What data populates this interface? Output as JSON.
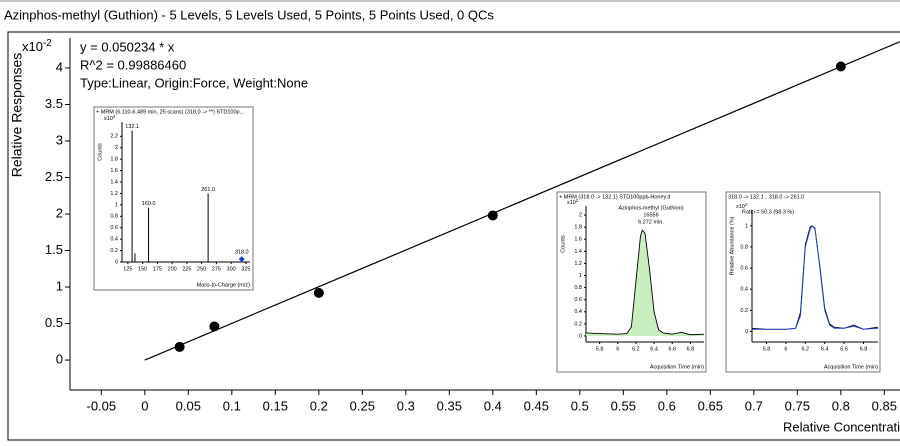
{
  "chart_data": [
    {
      "type": "scatter",
      "title": "Azinphos-methyl (Guthion) - 5 Levels, 5 Levels Used, 5 Points, 5 Points Used, 0 QCs",
      "annotations": [
        "y = 0.050234 * x",
        "R^2 = 0.99886460",
        "Type:Linear, Origin:Force, Weight:None"
      ],
      "y_scale_label": "x10",
      "y_scale_exponent": "-2",
      "y_label": "Relative Responses",
      "x_label": "Relative Concentration",
      "x": [
        0.04,
        0.08,
        0.2,
        0.4,
        0.8
      ],
      "values": [
        0.18,
        0.46,
        0.92,
        1.98,
        4.02
      ],
      "color": "#000000",
      "fit": {
        "x": [
          0,
          0.868
        ],
        "values": [
          0,
          4.36
        ],
        "color": "#000000"
      },
      "xlim": [
        -0.086,
        0.868
      ],
      "ylim": [
        -0.41,
        4.41
      ],
      "xticks": [
        -0.05,
        0,
        0.05,
        0.1,
        0.15,
        0.2,
        0.25,
        0.3,
        0.35,
        0.4,
        0.45,
        0.5,
        0.55,
        0.6,
        0.65,
        0.7,
        0.75,
        0.8,
        0.85
      ],
      "yticks": [
        0,
        0.5,
        1,
        1.5,
        2,
        2.5,
        3,
        3.5,
        4
      ]
    },
    {
      "type": "bar",
      "title": "+ MRM (6.110-6.489 min, 25 scans) (318.0 -> **) STD100p...",
      "y_label": "Counts",
      "y_scale_label": "x10",
      "y_scale_exponent": "4",
      "x_label": "Mass-to-Charge (m/z)",
      "x": [
        132.1,
        137,
        160.0,
        261.0,
        318.0
      ],
      "values": [
        2.3,
        0.15,
        0.95,
        1.2,
        0.05
      ],
      "peak_labels": [
        "132.1",
        null,
        "160.0",
        "261.0",
        "318.0"
      ],
      "color": "#000000",
      "marker_color": "#1f3fd6",
      "xlim": [
        115,
        332
      ],
      "ylim": [
        0,
        2.45
      ],
      "xticks": [
        125,
        150,
        175,
        200,
        225,
        250,
        275,
        300,
        325
      ],
      "yticks": [
        0,
        0.2,
        0.4,
        0.6,
        0.8,
        1,
        1.2,
        1.4,
        1.6,
        1.8,
        2,
        2.2
      ]
    },
    {
      "type": "line",
      "title": "+ MRM (318.0 -> 132.1) STD100ppb-Honey.d",
      "annotations": [
        "Azinphos-methyl (Guthion)",
        "16556",
        "6.272 min."
      ],
      "y_label": "Counts",
      "y_scale_label": "x10",
      "y_scale_exponent": "2",
      "x_label": "Acquisition Time (min)",
      "x": [
        5.65,
        5.8,
        6.0,
        6.1,
        6.15,
        6.2,
        6.25,
        6.27,
        6.3,
        6.35,
        6.4,
        6.45,
        6.5,
        6.6,
        6.7,
        6.8,
        6.95
      ],
      "series": [
        {
          "color": "#000000",
          "fill": "#c8eec0",
          "values": [
            0.05,
            0.04,
            0.03,
            0.04,
            0.15,
            0.9,
            1.65,
            1.75,
            1.7,
            1.1,
            0.4,
            0.1,
            0.05,
            0.03,
            0.06,
            0.02,
            0.03
          ]
        }
      ],
      "xlim": [
        5.65,
        6.95
      ],
      "ylim": [
        -0.1,
        2.15
      ],
      "xticks": [
        5.8,
        6,
        6.2,
        6.4,
        6.6,
        6.8
      ],
      "yticks": [
        0,
        0.2,
        0.4,
        0.6,
        0.8,
        1,
        1.2,
        1.4,
        1.6,
        1.8,
        2
      ]
    },
    {
      "type": "line",
      "title": "318.0 -> 132.1 ,",
      "title_2": "318.0 -> 261.0",
      "annotations": [
        "Ratio = 50.3 (98.3 %)"
      ],
      "y_label": "Relative Abundance (%)",
      "y_scale_label": "x10",
      "y_scale_exponent": "2",
      "x_label": "Acquisition Time (min)",
      "x": [
        5.65,
        5.8,
        6.0,
        6.1,
        6.15,
        6.2,
        6.25,
        6.27,
        6.3,
        6.35,
        6.4,
        6.45,
        6.5,
        6.6,
        6.7,
        6.8,
        6.95
      ],
      "series": [
        {
          "color": "#000000",
          "values": [
            0.03,
            0.02,
            0.02,
            0.03,
            0.18,
            0.82,
            0.99,
            1.0,
            0.97,
            0.62,
            0.22,
            0.07,
            0.04,
            0.03,
            0.06,
            0.02,
            0.04
          ]
        },
        {
          "color": "#1f3fd6",
          "values": [
            0.02,
            0.02,
            0.02,
            0.03,
            0.15,
            0.8,
            0.97,
            1.0,
            0.98,
            0.6,
            0.2,
            0.06,
            0.03,
            0.03,
            0.05,
            0.02,
            0.03
          ]
        }
      ],
      "xlim": [
        5.65,
        6.95
      ],
      "ylim": [
        -0.1,
        1.15
      ],
      "xticks": [
        5.8,
        6,
        6.2,
        6.4,
        6.6,
        6.8
      ],
      "yticks": [
        0,
        0.2,
        0.4,
        0.6,
        0.8,
        1
      ]
    }
  ]
}
